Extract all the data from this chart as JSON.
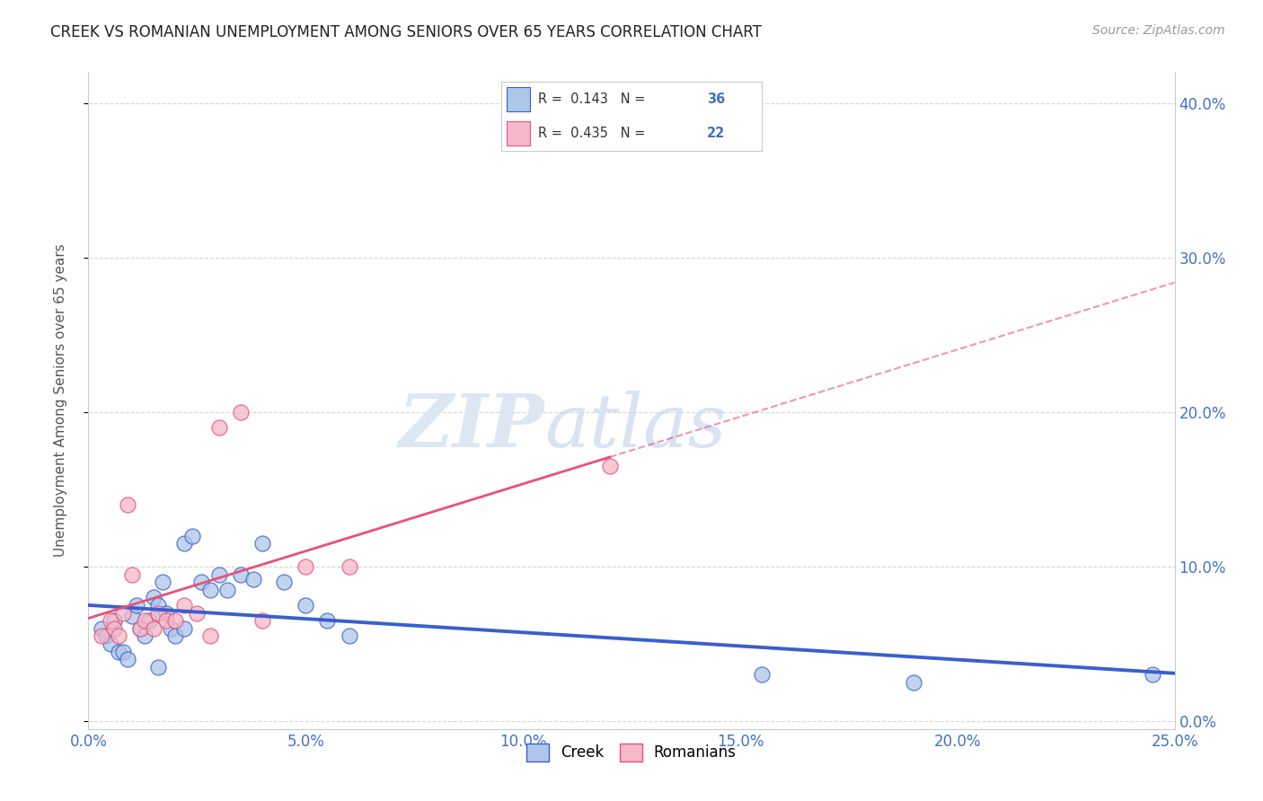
{
  "title": "CREEK VS ROMANIAN UNEMPLOYMENT AMONG SENIORS OVER 65 YEARS CORRELATION CHART",
  "source": "Source: ZipAtlas.com",
  "ylabel": "Unemployment Among Seniors over 65 years",
  "xlim": [
    0.0,
    0.25
  ],
  "ylim": [
    -0.005,
    0.42
  ],
  "xticks": [
    0.0,
    0.05,
    0.1,
    0.15,
    0.2,
    0.25
  ],
  "yticks": [
    0.0,
    0.1,
    0.2,
    0.3,
    0.4
  ],
  "creek_r": "0.143",
  "creek_n": "36",
  "romanian_r": "0.435",
  "romanian_n": "22",
  "creek_color": "#aec6e8",
  "romanian_color": "#f5b8c8",
  "creek_line_color": "#3a5fcd",
  "romanian_line_color": "#e8507a",
  "watermark_zip": "ZIP",
  "watermark_atlas": "atlas",
  "legend_entry1": "R =  0.143   N = ",
  "legend_n1": "36",
  "legend_entry2": "R =  0.435   N = ",
  "legend_n2": "22",
  "creek_x": [
    0.003,
    0.004,
    0.005,
    0.006,
    0.007,
    0.008,
    0.009,
    0.01,
    0.011,
    0.012,
    0.013,
    0.014,
    0.015,
    0.016,
    0.017,
    0.018,
    0.019,
    0.02,
    0.022,
    0.024,
    0.026,
    0.028,
    0.03,
    0.032,
    0.035,
    0.038,
    0.04,
    0.045,
    0.05,
    0.055,
    0.06,
    0.155,
    0.19,
    0.245,
    0.016,
    0.022
  ],
  "creek_y": [
    0.06,
    0.055,
    0.05,
    0.065,
    0.045,
    0.045,
    0.04,
    0.068,
    0.075,
    0.06,
    0.055,
    0.065,
    0.08,
    0.075,
    0.09,
    0.07,
    0.06,
    0.055,
    0.115,
    0.12,
    0.09,
    0.085,
    0.095,
    0.085,
    0.095,
    0.092,
    0.115,
    0.09,
    0.075,
    0.065,
    0.055,
    0.03,
    0.025,
    0.03,
    0.035,
    0.06
  ],
  "romanian_x": [
    0.003,
    0.005,
    0.006,
    0.007,
    0.008,
    0.009,
    0.01,
    0.012,
    0.013,
    0.015,
    0.016,
    0.018,
    0.02,
    0.022,
    0.025,
    0.028,
    0.03,
    0.035,
    0.04,
    0.05,
    0.06,
    0.12
  ],
  "romanian_y": [
    0.055,
    0.065,
    0.06,
    0.055,
    0.07,
    0.14,
    0.095,
    0.06,
    0.065,
    0.06,
    0.07,
    0.065,
    0.065,
    0.075,
    0.07,
    0.055,
    0.19,
    0.2,
    0.065,
    0.1,
    0.1,
    0.165
  ]
}
